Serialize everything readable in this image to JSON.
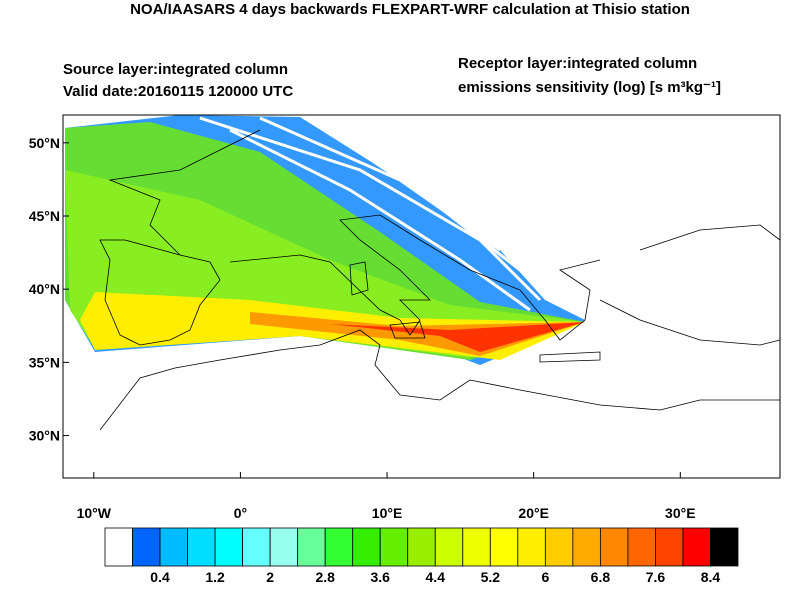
{
  "header": {
    "title": "NOA/IAASARS 4 days backwards FLEXPART-WRF calculation at Thisio station",
    "source_layer": "Source layer:integrated column",
    "valid_date": "Valid date:20160115 120000 UTC",
    "receptor_layer": "Receptor layer:integrated column",
    "units": "emissions sensitivity (log) [s m³kg⁻¹]"
  },
  "map": {
    "xlim": [
      -12.1,
      36.8
    ],
    "ylim": [
      27.1,
      51.9
    ],
    "xticks": [
      {
        "value": -10,
        "label": "10°W"
      },
      {
        "value": 0,
        "label": "0°"
      },
      {
        "value": 10,
        "label": "10°E"
      },
      {
        "value": 20,
        "label": "20°E"
      },
      {
        "value": 30,
        "label": "30°E"
      }
    ],
    "yticks": [
      {
        "value": 30,
        "label": "30°N"
      },
      {
        "value": 35,
        "label": "35°N"
      },
      {
        "value": 40,
        "label": "40°N"
      },
      {
        "value": 45,
        "label": "45°N"
      },
      {
        "value": 50,
        "label": "50°N"
      }
    ]
  },
  "colorbar": {
    "range": [
      -0.4,
      8.8
    ],
    "colors": [
      "#ffffff",
      "#0066ff",
      "#00bbff",
      "#00ddff",
      "#00ffff",
      "#66ffff",
      "#99ffee",
      "#66ff99",
      "#33ff33",
      "#33ee00",
      "#66ee00",
      "#99ee00",
      "#ccff00",
      "#eeff00",
      "#ffff00",
      "#ffee00",
      "#ffcc00",
      "#ffaa00",
      "#ff8800",
      "#ff6600",
      "#ff4400",
      "#ff0000",
      "#000000"
    ],
    "ticks": [
      0.4,
      1.2,
      2,
      2.8,
      3.6,
      4.4,
      5.2,
      6,
      6.8,
      7.6,
      8.4
    ]
  }
}
